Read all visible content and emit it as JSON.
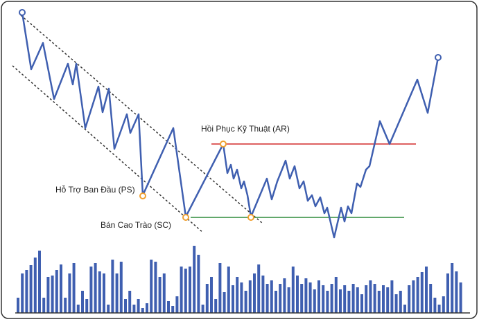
{
  "annotations": {
    "ar": "Hồi Phục Kỹ Thuật (AR)",
    "ps": "Hỗ Trợ Ban Đầu (PS)",
    "sc": "Bán Cao Trào (SC)"
  }
}
